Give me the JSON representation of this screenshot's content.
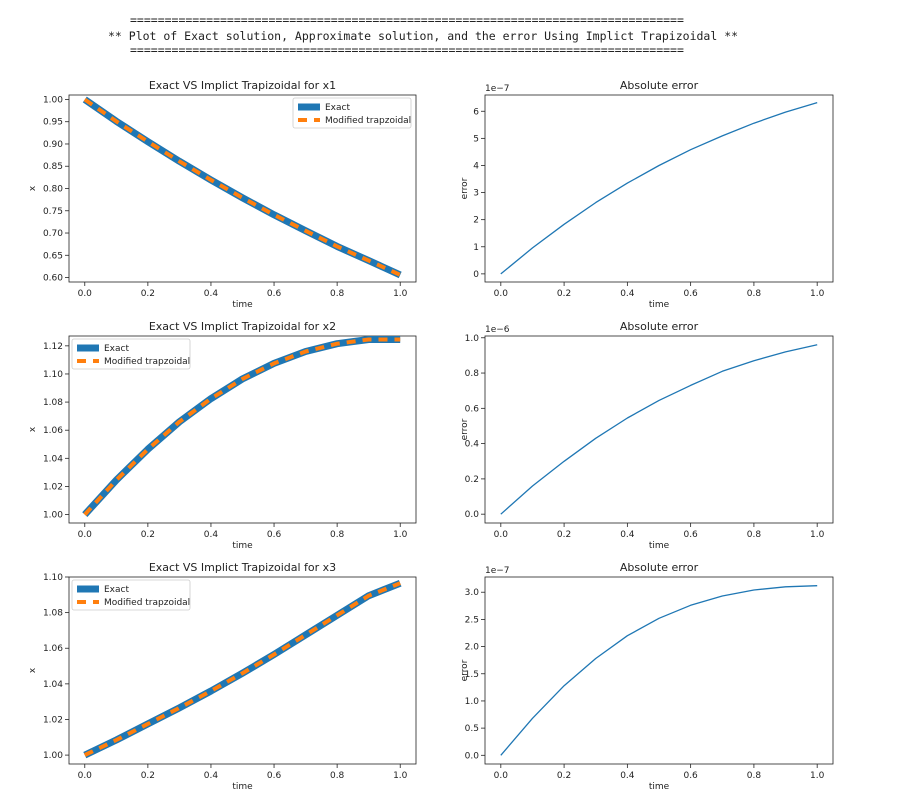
{
  "header": {
    "rule_top": "================================================================================",
    "title": "** Plot of Exact solution, Approximate solution, and the error Using Implict Trapizoidal **",
    "rule_bottom": "================================================================================"
  },
  "colors": {
    "exact": "#1f77b4",
    "approx": "#ff7f0e",
    "error": "#1f77b4",
    "axis": "#222222"
  },
  "chart_data": [
    {
      "type": "line",
      "title": "Exact VS Implict Trapizoidal for x1",
      "xlabel": "time",
      "ylabel": "x",
      "xlim": [
        -0.05,
        1.05
      ],
      "ylim": [
        0.59,
        1.01
      ],
      "xticks": [
        0.0,
        0.2,
        0.4,
        0.6,
        0.8,
        1.0
      ],
      "xtick_labels": [
        "0.0",
        "0.2",
        "0.4",
        "0.6",
        "0.8",
        "1.0"
      ],
      "yticks": [
        0.6,
        0.65,
        0.7,
        0.75,
        0.8,
        0.85,
        0.9,
        0.95,
        1.0
      ],
      "ytick_labels": [
        "0.60",
        "0.65",
        "0.70",
        "0.75",
        "0.80",
        "0.85",
        "0.90",
        "0.95",
        "1.00"
      ],
      "legend": "top-right",
      "x": [
        0.0,
        0.1,
        0.2,
        0.3,
        0.4,
        0.5,
        0.6,
        0.7,
        0.8,
        0.9,
        1.0
      ],
      "series": [
        {
          "name": "Exact",
          "style": "solid-thick",
          "values": [
            1.0,
            0.951,
            0.905,
            0.861,
            0.819,
            0.779,
            0.741,
            0.705,
            0.67,
            0.638,
            0.606
          ]
        },
        {
          "name": "Modified trapzoidal",
          "style": "dashed",
          "values": [
            1.0,
            0.951,
            0.905,
            0.861,
            0.819,
            0.779,
            0.741,
            0.705,
            0.67,
            0.638,
            0.606
          ]
        }
      ]
    },
    {
      "type": "line",
      "title": "Absolute error",
      "xlabel": "time",
      "ylabel": "error",
      "scale_label": "1e−7",
      "xlim": [
        -0.05,
        1.05
      ],
      "ylim": [
        -0.3,
        6.6
      ],
      "xticks": [
        0.0,
        0.2,
        0.4,
        0.6,
        0.8,
        1.0
      ],
      "xtick_labels": [
        "0.0",
        "0.2",
        "0.4",
        "0.6",
        "0.8",
        "1.0"
      ],
      "yticks": [
        0,
        1,
        2,
        3,
        4,
        5,
        6
      ],
      "ytick_labels": [
        "0",
        "1",
        "2",
        "3",
        "4",
        "5",
        "6"
      ],
      "x": [
        0.0,
        0.1,
        0.2,
        0.3,
        0.4,
        0.5,
        0.6,
        0.7,
        0.8,
        0.9,
        1.0
      ],
      "series": [
        {
          "style": "solid",
          "values": [
            0.0,
            0.96,
            1.83,
            2.63,
            3.35,
            4.0,
            4.58,
            5.09,
            5.56,
            5.97,
            6.32
          ]
        }
      ]
    },
    {
      "type": "line",
      "title": "Exact VS Implict Trapizoidal for x2",
      "xlabel": "time",
      "ylabel": "x",
      "xlim": [
        -0.05,
        1.05
      ],
      "ylim": [
        0.994,
        1.127
      ],
      "xticks": [
        0.0,
        0.2,
        0.4,
        0.6,
        0.8,
        1.0
      ],
      "xtick_labels": [
        "0.0",
        "0.2",
        "0.4",
        "0.6",
        "0.8",
        "1.0"
      ],
      "yticks": [
        1.0,
        1.02,
        1.04,
        1.06,
        1.08,
        1.1,
        1.12
      ],
      "ytick_labels": [
        "1.00",
        "1.02",
        "1.04",
        "1.06",
        "1.08",
        "1.10",
        "1.12"
      ],
      "legend": "top-left",
      "x": [
        0.0,
        0.1,
        0.2,
        0.3,
        0.4,
        0.5,
        0.6,
        0.7,
        0.8,
        0.9,
        1.0
      ],
      "series": [
        {
          "name": "Exact",
          "style": "solid-thick",
          "values": [
            1.0,
            1.0245,
            1.0465,
            1.066,
            1.0825,
            1.0965,
            1.1075,
            1.116,
            1.1215,
            1.1245,
            1.1245
          ]
        },
        {
          "name": "Modified trapzoidal",
          "style": "dashed",
          "values": [
            1.0,
            1.0245,
            1.0465,
            1.066,
            1.0825,
            1.0965,
            1.1075,
            1.116,
            1.1215,
            1.1245,
            1.1245
          ]
        }
      ]
    },
    {
      "type": "line",
      "title": "Absolute error",
      "xlabel": "time",
      "ylabel": "error",
      "scale_label": "1e−6",
      "xlim": [
        -0.05,
        1.05
      ],
      "ylim": [
        -0.05,
        1.01
      ],
      "xticks": [
        0.0,
        0.2,
        0.4,
        0.6,
        0.8,
        1.0
      ],
      "xtick_labels": [
        "0.0",
        "0.2",
        "0.4",
        "0.6",
        "0.8",
        "1.0"
      ],
      "yticks": [
        0.0,
        0.2,
        0.4,
        0.6,
        0.8,
        1.0
      ],
      "ytick_labels": [
        "0.0",
        "0.2",
        "0.4",
        "0.6",
        "0.8",
        "1.0"
      ],
      "x": [
        0.0,
        0.1,
        0.2,
        0.3,
        0.4,
        0.5,
        0.6,
        0.7,
        0.8,
        0.9,
        1.0
      ],
      "series": [
        {
          "style": "solid",
          "values": [
            0.0,
            0.16,
            0.3,
            0.43,
            0.545,
            0.645,
            0.73,
            0.81,
            0.87,
            0.92,
            0.96
          ]
        }
      ]
    },
    {
      "type": "line",
      "title": "Exact VS Implict Trapizoidal for x3",
      "xlabel": "time",
      "ylabel": "x",
      "xlim": [
        -0.05,
        1.05
      ],
      "ylim": [
        0.995,
        1.1
      ],
      "xticks": [
        0.0,
        0.2,
        0.4,
        0.6,
        0.8,
        1.0
      ],
      "xtick_labels": [
        "0.0",
        "0.2",
        "0.4",
        "0.6",
        "0.8",
        "1.0"
      ],
      "yticks": [
        1.0,
        1.02,
        1.04,
        1.06,
        1.08,
        1.1
      ],
      "ytick_labels": [
        "1.00",
        "1.02",
        "1.04",
        "1.06",
        "1.08",
        "1.10"
      ],
      "legend": "top-left",
      "x": [
        0.0,
        0.1,
        0.2,
        0.3,
        0.4,
        0.5,
        0.6,
        0.7,
        0.8,
        0.9,
        1.0
      ],
      "series": [
        {
          "name": "Exact",
          "style": "solid-thick",
          "values": [
            1.0,
            1.0085,
            1.0175,
            1.0265,
            1.036,
            1.046,
            1.0565,
            1.0675,
            1.0785,
            1.0895,
            1.0965
          ]
        },
        {
          "name": "Modified trapzoidal",
          "style": "dashed",
          "values": [
            1.0,
            1.0085,
            1.0175,
            1.0265,
            1.036,
            1.046,
            1.0565,
            1.0675,
            1.0785,
            1.0895,
            1.0965
          ]
        }
      ]
    },
    {
      "type": "line",
      "title": "Absolute error",
      "xlabel": "time",
      "ylabel": "error",
      "scale_label": "1e−7",
      "xlim": [
        -0.05,
        1.05
      ],
      "ylim": [
        -0.16,
        3.28
      ],
      "xticks": [
        0.0,
        0.2,
        0.4,
        0.6,
        0.8,
        1.0
      ],
      "xtick_labels": [
        "0.0",
        "0.2",
        "0.4",
        "0.6",
        "0.8",
        "1.0"
      ],
      "yticks": [
        0.0,
        0.5,
        1.0,
        1.5,
        2.0,
        2.5,
        3.0
      ],
      "ytick_labels": [
        "0.0",
        "0.5",
        "1.0",
        "1.5",
        "2.0",
        "2.5",
        "3.0"
      ],
      "x": [
        0.0,
        0.1,
        0.2,
        0.3,
        0.4,
        0.5,
        0.6,
        0.7,
        0.8,
        0.9,
        1.0
      ],
      "series": [
        {
          "style": "solid",
          "values": [
            0.0,
            0.68,
            1.28,
            1.78,
            2.2,
            2.52,
            2.76,
            2.93,
            3.04,
            3.1,
            3.12
          ]
        }
      ]
    }
  ]
}
